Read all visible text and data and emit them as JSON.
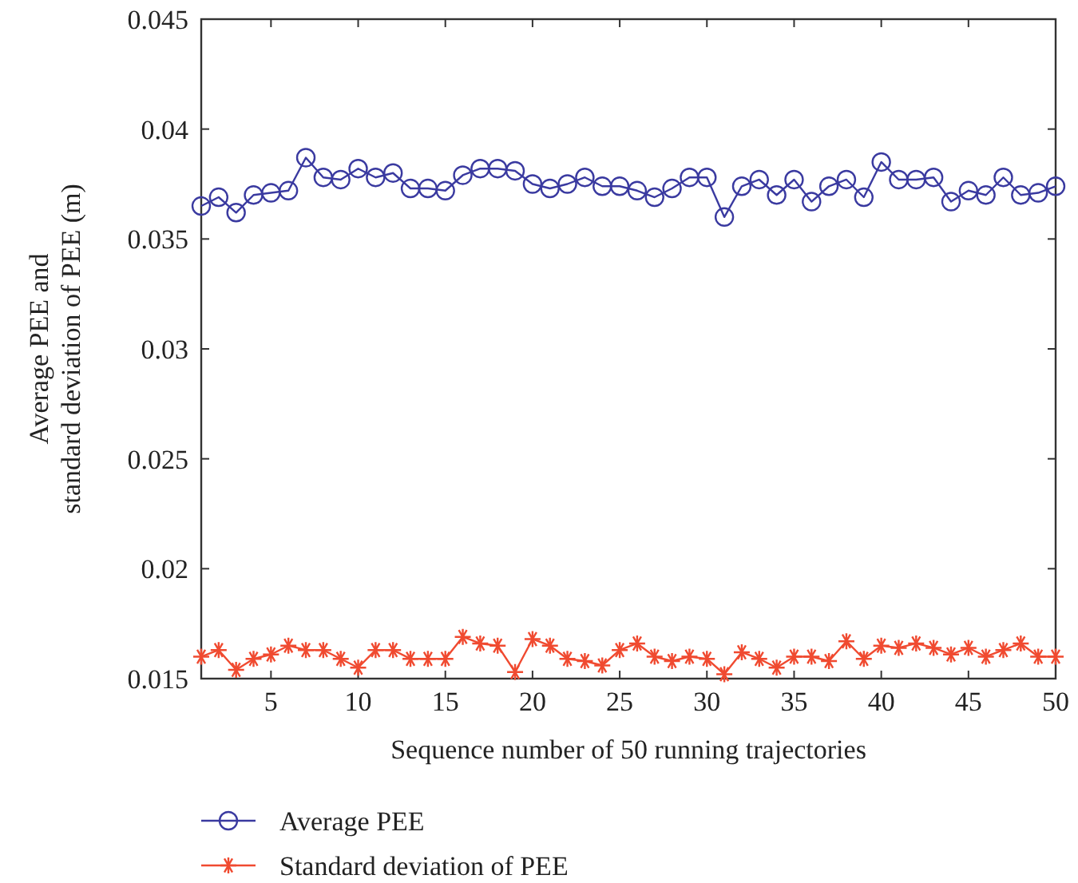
{
  "chart_data": {
    "type": "line",
    "xlabel": "Sequence number of 50 running trajectories",
    "ylabel": "Average PEE and\nstandard deviation of PEE (m)",
    "x": [
      1,
      2,
      3,
      4,
      5,
      6,
      7,
      8,
      9,
      10,
      11,
      12,
      13,
      14,
      15,
      16,
      17,
      18,
      19,
      20,
      21,
      22,
      23,
      24,
      25,
      26,
      27,
      28,
      29,
      30,
      31,
      32,
      33,
      34,
      35,
      36,
      37,
      38,
      39,
      40,
      41,
      42,
      43,
      44,
      45,
      46,
      47,
      48,
      49,
      50
    ],
    "xlim": [
      1,
      50
    ],
    "xticks": [
      5,
      10,
      15,
      20,
      25,
      30,
      35,
      40,
      45,
      50
    ],
    "ylim": [
      0.015,
      0.045
    ],
    "yticks": [
      0.015,
      0.02,
      0.025,
      0.03,
      0.035,
      0.04,
      0.045
    ],
    "grid": false,
    "legend": "bottom",
    "line_style": "solid",
    "series": [
      {
        "name": "Average PEE",
        "color": "#3a3aa0",
        "marker": "circle",
        "values": [
          0.0365,
          0.0369,
          0.0362,
          0.037,
          0.0371,
          0.0372,
          0.0387,
          0.0378,
          0.0377,
          0.0382,
          0.0378,
          0.038,
          0.0373,
          0.0373,
          0.0372,
          0.0379,
          0.0382,
          0.0382,
          0.0381,
          0.0375,
          0.0373,
          0.0375,
          0.0378,
          0.0374,
          0.0374,
          0.0372,
          0.0369,
          0.0373,
          0.0378,
          0.0378,
          0.036,
          0.0374,
          0.0377,
          0.037,
          0.0377,
          0.0367,
          0.0374,
          0.0377,
          0.0369,
          0.0385,
          0.0377,
          0.0377,
          0.0378,
          0.0367,
          0.0372,
          0.037,
          0.0378,
          0.037,
          0.0371,
          0.0374
        ]
      },
      {
        "name": "Standard deviation of PEE",
        "color": "#f04a30",
        "marker": "cross",
        "values": [
          0.016,
          0.0163,
          0.0154,
          0.0159,
          0.0161,
          0.0165,
          0.0163,
          0.0163,
          0.0159,
          0.0155,
          0.0163,
          0.0163,
          0.0159,
          0.0159,
          0.0159,
          0.0169,
          0.0166,
          0.0165,
          0.0153,
          0.0168,
          0.0165,
          0.0159,
          0.0158,
          0.0156,
          0.0163,
          0.0166,
          0.016,
          0.0158,
          0.016,
          0.0159,
          0.0152,
          0.0162,
          0.0159,
          0.0155,
          0.016,
          0.016,
          0.0158,
          0.0167,
          0.0159,
          0.0165,
          0.0164,
          0.0166,
          0.0164,
          0.0161,
          0.0164,
          0.016,
          0.0163,
          0.0166,
          0.016,
          0.016
        ]
      }
    ]
  }
}
